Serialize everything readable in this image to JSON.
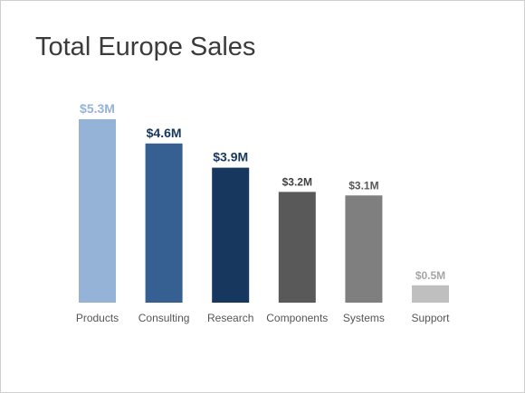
{
  "slide": {
    "title": "Total Europe Sales"
  },
  "chart_data": {
    "type": "bar",
    "title": "Total Europe Sales",
    "categories": [
      "Products",
      "Consulting",
      "Research",
      "Components",
      "Systems",
      "Support"
    ],
    "values": [
      5.3,
      4.6,
      3.9,
      3.2,
      3.1,
      0.5
    ],
    "value_labels": [
      "$5.3M",
      "$4.6M",
      "$3.9M",
      "$3.2M",
      "$3.1M",
      "$0.5M"
    ],
    "bar_colors": [
      "#95b3d7",
      "#366092",
      "#17375e",
      "#595959",
      "#7f7f7f",
      "#bfbfbf"
    ],
    "label_colors": [
      "#95b3d7",
      "#17375e",
      "#17375e",
      "#404040",
      "#595959",
      "#a6a6a6"
    ],
    "grid": false,
    "legend": "none"
  }
}
